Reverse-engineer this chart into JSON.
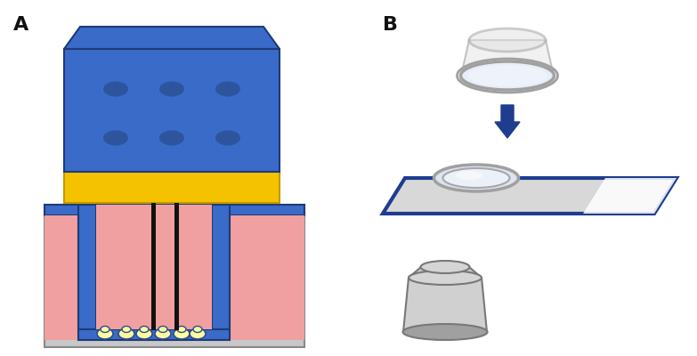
{
  "fig_width": 7.83,
  "fig_height": 4.0,
  "dpi": 100,
  "bg_color": "#ffffff",
  "label_A": "A",
  "label_B": "B",
  "label_fontsize": 16,
  "label_fontweight": "bold",
  "blue_main": "#3a6bc9",
  "blue_dark": "#2a4d8f",
  "blue_border": "#1e3a78",
  "yellow": "#f5c200",
  "yellow_dark": "#c49a00",
  "pink_liquid": "#f0a0a0",
  "black": "#111111",
  "gray_light": "#d0d0d0",
  "gray_mid": "#a0a0a0",
  "gray_dark": "#787878",
  "gray_container": "#c8c8c8",
  "cell_yellow": "#ffffa0",
  "cell_border": "#2a4d8f",
  "arrow_blue": "#1e3d8f",
  "white": "#ffffff",
  "slide_blue": "#1e3d8f"
}
